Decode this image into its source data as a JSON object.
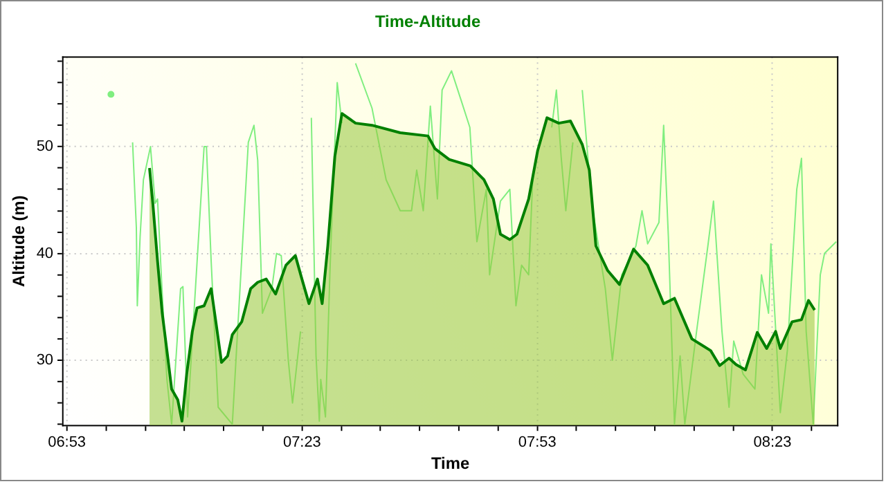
{
  "chart_data": {
    "type": "line",
    "title": "Time-Altitude",
    "xlabel": "Time",
    "ylabel": "Altitude (m)",
    "xlim": [
      6.875,
      8.522
    ],
    "ylim": [
      23.9,
      58.4
    ],
    "xticks": [
      {
        "value": 6.8833,
        "label": "06:53"
      },
      {
        "value": 6.9667,
        "label": null
      },
      {
        "value": 7.05,
        "label": null
      },
      {
        "value": 7.1333,
        "label": null
      },
      {
        "value": 7.2167,
        "label": null
      },
      {
        "value": 7.3,
        "label": null
      },
      {
        "value": 7.3833,
        "label": "07:23"
      },
      {
        "value": 7.4667,
        "label": null
      },
      {
        "value": 7.55,
        "label": null
      },
      {
        "value": 7.6333,
        "label": null
      },
      {
        "value": 7.7167,
        "label": null
      },
      {
        "value": 7.8,
        "label": null
      },
      {
        "value": 7.8833,
        "label": "07:53"
      },
      {
        "value": 7.9667,
        "label": null
      },
      {
        "value": 8.05,
        "label": null
      },
      {
        "value": 8.1333,
        "label": null
      },
      {
        "value": 8.2167,
        "label": null
      },
      {
        "value": 8.3,
        "label": null
      },
      {
        "value": 8.3833,
        "label": "08:23"
      },
      {
        "value": 8.4667,
        "label": null
      }
    ],
    "yticks": [
      {
        "value": 24,
        "label": null
      },
      {
        "value": 26,
        "label": null
      },
      {
        "value": 28,
        "label": null
      },
      30,
      {
        "value": 32,
        "label": null
      },
      {
        "value": 34,
        "label": null
      },
      {
        "value": 36,
        "label": null
      },
      {
        "value": 38,
        "label": null
      },
      40,
      {
        "value": 42,
        "label": null
      },
      {
        "value": 44,
        "label": null
      },
      {
        "value": 46,
        "label": null
      },
      {
        "value": 48,
        "label": null
      },
      50,
      {
        "value": 52,
        "label": null
      },
      {
        "value": 54,
        "label": null
      },
      {
        "value": 56,
        "label": null
      },
      {
        "value": 58,
        "label": null
      }
    ],
    "grid": true,
    "series": [
      {
        "type": "area",
        "color": "#008000",
        "x": [
          7.059,
          7.066,
          7.076,
          7.086,
          7.096,
          7.106,
          7.119,
          7.128,
          7.138,
          7.15,
          7.16,
          7.175,
          7.19,
          7.2,
          7.212,
          7.225,
          7.235,
          7.255,
          7.274,
          7.289,
          7.307,
          7.327,
          7.349,
          7.369,
          7.383,
          7.398,
          7.416,
          7.426,
          7.438,
          7.453,
          7.468,
          7.497,
          7.532,
          7.592,
          7.651,
          7.666,
          7.696,
          7.741,
          7.77,
          7.79,
          7.805,
          7.825,
          7.84,
          7.865,
          7.884,
          7.904,
          7.929,
          7.954,
          7.979,
          7.994,
          8.008,
          8.033,
          8.058,
          8.088,
          8.118,
          8.152,
          8.175,
          8.212,
          8.252,
          8.271,
          8.291,
          8.306,
          8.326,
          8.351,
          8.371,
          8.39,
          8.4,
          8.425,
          8.445,
          8.46,
          8.473
        ],
        "values": [
          48.0,
          44.7,
          39.3,
          34.4,
          30.9,
          27.3,
          26.3,
          24.3,
          28.7,
          32.7,
          34.9,
          35.1,
          36.7,
          33.6,
          29.8,
          30.4,
          32.4,
          33.6,
          36.7,
          37.3,
          37.6,
          36.2,
          38.9,
          39.8,
          37.6,
          35.3,
          37.6,
          35.3,
          40.7,
          49.1,
          53.1,
          52.2,
          52.0,
          51.3,
          51.0,
          49.8,
          48.8,
          48.2,
          46.9,
          45.1,
          41.8,
          41.3,
          41.8,
          45.1,
          49.6,
          52.7,
          52.2,
          52.4,
          50.2,
          47.8,
          40.7,
          38.4,
          37.1,
          40.4,
          38.9,
          35.3,
          35.8,
          32.0,
          30.9,
          29.5,
          30.2,
          29.6,
          29.1,
          32.6,
          31.1,
          32.7,
          31.1,
          33.6,
          33.8,
          35.6,
          34.7
        ]
      },
      {
        "type": "line",
        "color": "#80ee80",
        "x": [
          6.977,
          6.997,
          7.023,
          7.031,
          7.033,
          7.039,
          7.046,
          7.061,
          7.071,
          7.076,
          7.086,
          7.096,
          7.106,
          7.125,
          7.13,
          7.14,
          7.175,
          7.18,
          7.19,
          7.205,
          7.235,
          7.269,
          7.281,
          7.289,
          7.299,
          7.319,
          7.329,
          7.339,
          7.354,
          7.363,
          7.38,
          7.39,
          7.403,
          7.413,
          7.42,
          7.423,
          7.433,
          7.443,
          7.458,
          7.468,
          7.485,
          7.497,
          7.532,
          7.562,
          7.592,
          7.616,
          7.627,
          7.641,
          7.656,
          7.671,
          7.681,
          7.701,
          7.721,
          7.74,
          7.755,
          7.775,
          7.782,
          7.805,
          7.825,
          7.838,
          7.85,
          7.865,
          7.874,
          7.902,
          7.914,
          7.924,
          7.934,
          7.944,
          7.959,
          7.972,
          7.979,
          7.999,
          8.028,
          8.043,
          8.063,
          8.093,
          8.106,
          8.118,
          8.142,
          8.152,
          8.162,
          8.175,
          8.187,
          8.197,
          8.222,
          8.246,
          8.258,
          8.276,
          8.291,
          8.301,
          8.321,
          8.346,
          8.36,
          8.375,
          8.38,
          8.4,
          8.415,
          8.435,
          8.445,
          8.455,
          8.47,
          8.485,
          8.494,
          8.519
        ],
        "values": [
          54.9,
          null,
          50.4,
          42.4,
          35.1,
          41.6,
          46.9,
          50.0,
          44.7,
          45.1,
          36.2,
          28.2,
          24.0,
          36.7,
          36.9,
          24.7,
          50.0,
          50.0,
          39.3,
          25.6,
          24.0,
          50.4,
          52.0,
          48.7,
          34.4,
          36.7,
          40.0,
          39.8,
          30.0,
          26.0,
          32.7,
          null,
          52.7,
          30.4,
          24.3,
          28.2,
          24.7,
          38.9,
          56.0,
          52.2,
          null,
          57.8,
          53.6,
          46.9,
          44.0,
          44.0,
          47.8,
          44.0,
          53.8,
          45.1,
          55.3,
          57.1,
          54.4,
          51.8,
          41.1,
          46.0,
          38.0,
          44.9,
          46.0,
          35.1,
          38.9,
          38.0,
          47.3,
          null,
          51.8,
          55.3,
          49.1,
          44.0,
          50.4,
          null,
          55.3,
          44.7,
          36.7,
          30.0,
          38.0,
          40.7,
          44.0,
          40.9,
          42.9,
          52.0,
          41.6,
          24.0,
          30.4,
          24.0,
          32.7,
          40.7,
          44.9,
          32.7,
          25.6,
          31.8,
          28.7,
          27.3,
          38.0,
          34.4,
          40.9,
          25.1,
          30.9,
          46.0,
          48.9,
          32.7,
          24.0,
          38.0,
          40.0,
          41.1
        ]
      }
    ]
  }
}
